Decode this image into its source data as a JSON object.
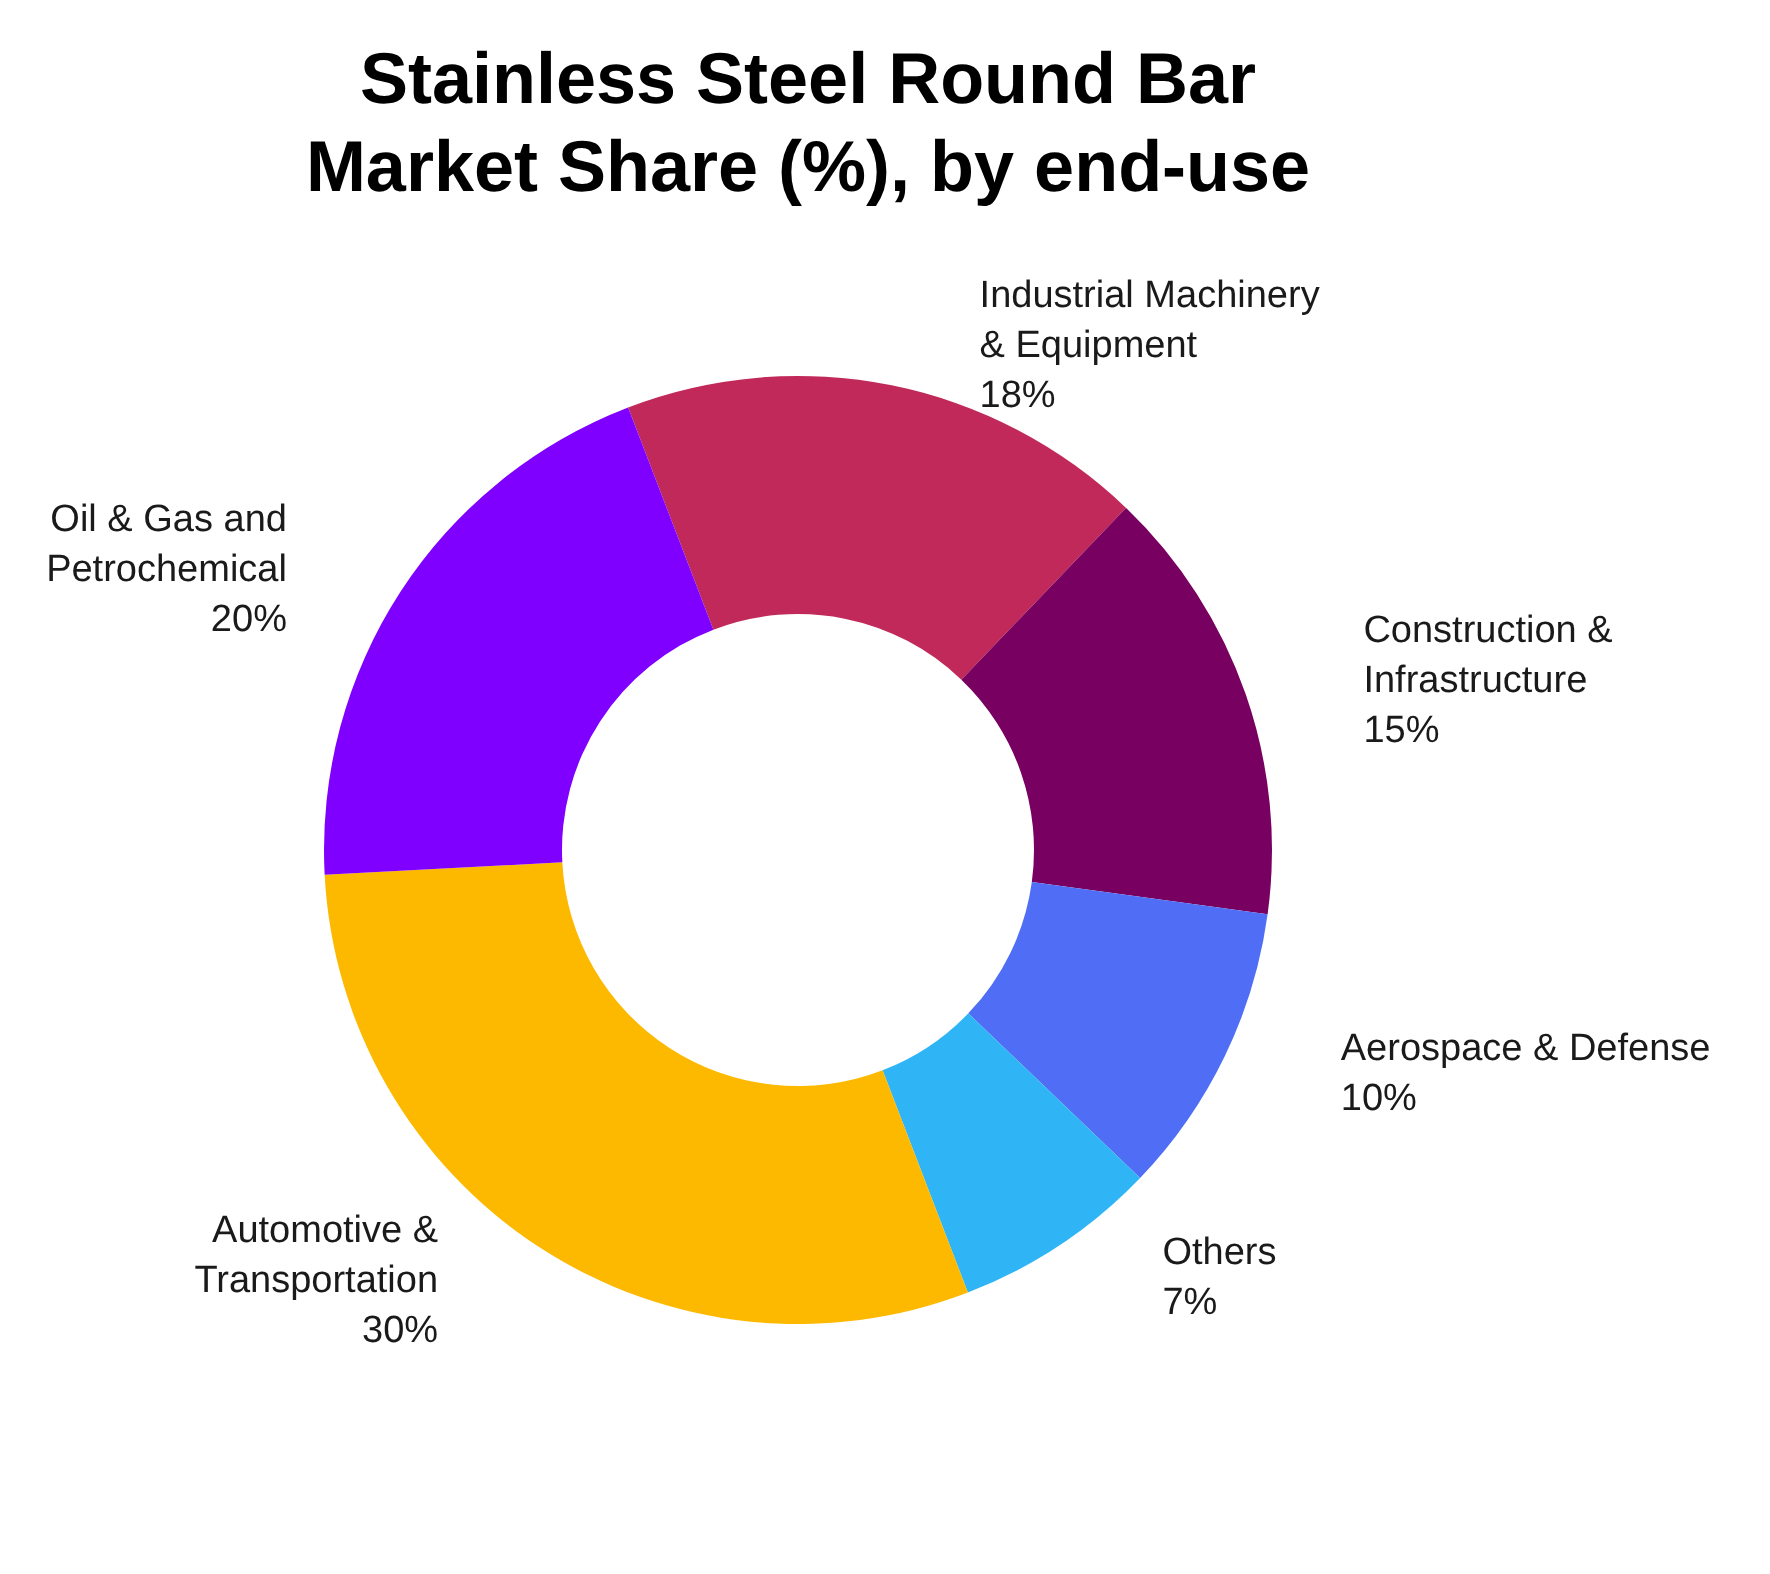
{
  "chart_data": {
    "type": "donut",
    "title": "Stainless Steel Round Bar\nMarket Share (%), by end-use",
    "categories": [
      "Industrial Machinery\n& Equipment",
      "Construction &\nInfrastructure",
      "Aerospace & Defense",
      "Others",
      "Automotive &\nTransportation",
      "Oil & Gas and\nPetrochemical"
    ],
    "values": [
      18,
      15,
      10,
      7,
      30,
      20
    ],
    "colors": [
      "#c0295a",
      "#780060",
      "#4f6ef5",
      "#2fb5f5",
      "#fdb900",
      "#8000ff"
    ],
    "value_labels": [
      "18%",
      "15%",
      "10%",
      "7%",
      "30%",
      "20%"
    ],
    "legend": false
  }
}
